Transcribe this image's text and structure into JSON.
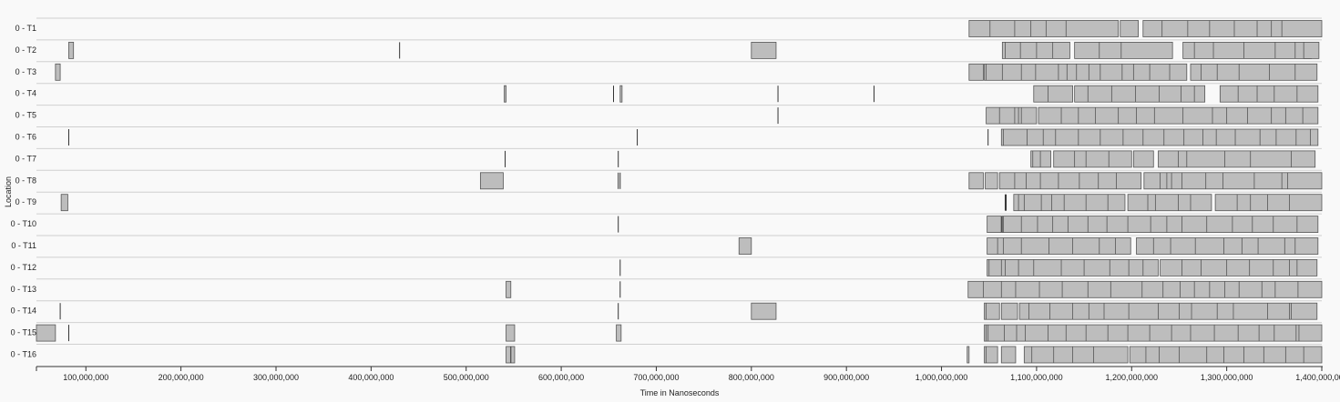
{
  "chart_data": {
    "type": "bar",
    "subtype": "timeline",
    "xlabel": "Time in Nanoseconds",
    "ylabel": "Location",
    "xlim": [
      48000000,
      1400000000
    ],
    "xticks": [
      100000000,
      200000000,
      300000000,
      400000000,
      500000000,
      600000000,
      700000000,
      800000000,
      900000000,
      1000000000,
      1100000000,
      1200000000,
      1300000000,
      1400000000
    ],
    "xtick_labels": [
      "100,000,000",
      "200,000,000",
      "300,000,000",
      "400,000,000",
      "500,000,000",
      "600,000,000",
      "700,000,000",
      "800,000,000",
      "900,000,000",
      "1,000,000,000",
      "1,100,000,000",
      "1,200,000,000",
      "1,300,000,000",
      "1,400,000,000"
    ],
    "grid": false,
    "lanes": [
      {
        "label": "0 - T1",
        "spans": [
          [
            1029000000,
            1186000000
          ],
          [
            1188000000,
            1207000000
          ],
          [
            1212000000,
            1400000000
          ]
        ],
        "dividers": [
          1051000000,
          1077000000,
          1094000000,
          1110000000,
          1131000000,
          1232000000,
          1259000000,
          1282000000,
          1308000000,
          1332000000,
          1347000000,
          1358000000
        ],
        "marks": []
      },
      {
        "label": "0 - T2",
        "spans": [
          [
            82000000,
            87000000
          ],
          [
            800000000,
            826000000
          ],
          [
            1064000000,
            1135000000
          ],
          [
            1140000000,
            1243000000
          ],
          [
            1254000000,
            1389000000
          ],
          [
            1381000000,
            1397000000
          ]
        ],
        "dividers": [
          1067000000,
          1083000000,
          1100000000,
          1117000000,
          1166000000,
          1189000000,
          1266000000,
          1286000000,
          1318000000,
          1351000000,
          1372000000
        ],
        "marks": [
          430000000
        ]
      },
      {
        "label": "0 - T3",
        "spans": [
          [
            68000000,
            73000000
          ],
          [
            1029000000,
            1044000000
          ],
          [
            1045000000,
            1258000000
          ],
          [
            1262000000,
            1395000000
          ]
        ],
        "dividers": [
          1047000000,
          1064000000,
          1084000000,
          1099000000,
          1123000000,
          1132000000,
          1142000000,
          1155000000,
          1167000000,
          1190000000,
          1202000000,
          1219000000,
          1240000000,
          1273000000,
          1290000000,
          1313000000,
          1345000000,
          1372000000
        ],
        "marks": []
      },
      {
        "label": "0 - T4",
        "spans": [
          [
            540000000,
            542000000
          ],
          [
            662000000,
            664000000
          ],
          [
            1097000000,
            1138000000
          ],
          [
            1140000000,
            1277000000
          ],
          [
            1293000000,
            1396000000
          ]
        ],
        "dividers": [
          1112000000,
          1154000000,
          1179000000,
          1204000000,
          1229000000,
          1252000000,
          1266000000,
          1312000000,
          1332000000,
          1350000000,
          1374000000
        ],
        "marks": [
          655000000,
          828000000,
          929000000
        ]
      },
      {
        "label": "0 - T5",
        "spans": [
          [
            1047000000,
            1100000000
          ],
          [
            1102000000,
            1396000000
          ]
        ],
        "dividers": [
          1061000000,
          1077000000,
          1081000000,
          1084000000,
          1126000000,
          1144000000,
          1162000000,
          1186000000,
          1205000000,
          1224000000,
          1254000000,
          1285000000,
          1300000000,
          1322000000,
          1347000000,
          1362000000,
          1380000000
        ],
        "marks": [
          828000000
        ]
      },
      {
        "label": "0 - T6",
        "spans": [
          [
            1063000000,
            1396000000
          ]
        ],
        "dividers": [
          1065000000,
          1090000000,
          1107000000,
          1120000000,
          1144000000,
          1167000000,
          1191000000,
          1212000000,
          1234000000,
          1255000000,
          1275000000,
          1289000000,
          1309000000,
          1335000000,
          1352000000,
          1373000000,
          1388000000
        ],
        "marks": [
          82000000,
          680000000,
          1049000000
        ]
      },
      {
        "label": "0 - T7",
        "spans": [
          [
            1094000000,
            1115000000
          ],
          [
            1118000000,
            1200000000
          ],
          [
            1202000000,
            1223000000
          ],
          [
            1228000000,
            1393000000
          ]
        ],
        "dividers": [
          1096000000,
          1104000000,
          1140000000,
          1152000000,
          1176000000,
          1249000000,
          1258000000,
          1298000000,
          1325000000,
          1368000000
        ],
        "marks": [
          541000000,
          660000000
        ]
      },
      {
        "label": "0 - T8",
        "spans": [
          [
            515000000,
            539000000
          ],
          [
            1029000000,
            1044000000
          ],
          [
            1046000000,
            1059000000
          ],
          [
            1061000000,
            1210000000
          ],
          [
            1213000000,
            1400000000
          ]
        ],
        "dividers": [
          1077000000,
          1089000000,
          1104000000,
          1123000000,
          1145000000,
          1165000000,
          1184000000,
          1230000000,
          1237000000,
          1242000000,
          1253000000,
          1278000000,
          1296000000,
          1329000000,
          1358000000,
          1364000000
        ],
        "marks": [
          660000000,
          662000000
        ]
      },
      {
        "label": "0 - T9",
        "spans": [
          [
            74000000,
            81000000
          ],
          [
            1076000000,
            1193000000
          ],
          [
            1196000000,
            1284000000
          ],
          [
            1288000000,
            1400000000
          ]
        ],
        "dividers": [
          1081000000,
          1087000000,
          1105000000,
          1116000000,
          1129000000,
          1152000000,
          1175000000,
          1217000000,
          1225000000,
          1249000000,
          1262000000,
          1311000000,
          1325000000,
          1343000000,
          1366000000
        ],
        "marks": [
          1067000000,
          1068000000
        ]
      },
      {
        "label": "0 - T10",
        "spans": [
          [
            1048000000,
            1063000000
          ],
          [
            1064000000,
            1396000000
          ]
        ],
        "dividers": [
          1065000000,
          1084000000,
          1101000000,
          1117000000,
          1133000000,
          1154000000,
          1174000000,
          1196000000,
          1220000000,
          1237000000,
          1253000000,
          1279000000,
          1306000000,
          1327000000,
          1349000000,
          1374000000
        ],
        "marks": [
          1063000000,
          660000000
        ]
      },
      {
        "label": "0 - T11",
        "spans": [
          [
            787000000,
            800000000
          ],
          [
            1048000000,
            1199000000
          ],
          [
            1205000000,
            1396000000
          ]
        ],
        "dividers": [
          1059000000,
          1065000000,
          1084000000,
          1113000000,
          1138000000,
          1166000000,
          1183000000,
          1223000000,
          1241000000,
          1267000000,
          1297000000,
          1316000000,
          1333000000,
          1361000000,
          1372000000
        ],
        "marks": []
      },
      {
        "label": "0 - T12",
        "spans": [
          [
            1048000000,
            1228000000
          ],
          [
            1230000000,
            1395000000
          ]
        ],
        "dividers": [
          1050000000,
          1063000000,
          1067000000,
          1081000000,
          1097000000,
          1126000000,
          1150000000,
          1177000000,
          1197000000,
          1212000000,
          1253000000,
          1273000000,
          1300000000,
          1324000000,
          1349000000,
          1366000000,
          1374000000
        ],
        "marks": [
          662000000
        ]
      },
      {
        "label": "0 - T13",
        "spans": [
          [
            542000000,
            547000000
          ],
          [
            1028000000,
            1400000000
          ]
        ],
        "dividers": [
          1044000000,
          1063000000,
          1078000000,
          1103000000,
          1127000000,
          1154000000,
          1178000000,
          1211000000,
          1233000000,
          1251000000,
          1266000000,
          1282000000,
          1298000000,
          1313000000,
          1337000000,
          1351000000,
          1375000000
        ],
        "marks": [
          662000000
        ]
      },
      {
        "label": "0 - T14",
        "spans": [
          [
            800000000,
            826000000
          ],
          [
            1045000000,
            1061000000
          ],
          [
            1063000000,
            1080000000
          ],
          [
            1082000000,
            1395000000
          ]
        ],
        "dividers": [
          1047000000,
          1092000000,
          1114000000,
          1138000000,
          1155000000,
          1171000000,
          1197000000,
          1228000000,
          1250000000,
          1263000000,
          1290000000,
          1307000000,
          1343000000,
          1366000000,
          1368000000
        ],
        "marks": [
          73000000,
          660000000
        ]
      },
      {
        "label": "0 - T15",
        "spans": [
          [
            48000000,
            68000000
          ],
          [
            542000000,
            551000000
          ],
          [
            658000000,
            663000000
          ],
          [
            1045000000,
            1400000000
          ]
        ],
        "dividers": [
          1047000000,
          1049000000,
          1066000000,
          1079000000,
          1088000000,
          1112000000,
          1131000000,
          1152000000,
          1175000000,
          1196000000,
          1219000000,
          1242000000,
          1262000000,
          1287000000,
          1312000000,
          1334000000,
          1350000000,
          1373000000,
          1376000000
        ],
        "marks": [
          82000000
        ]
      },
      {
        "label": "0 - T16",
        "spans": [
          [
            542000000,
            551000000
          ],
          [
            1027000000,
            1029000000
          ],
          [
            1045000000,
            1059000000
          ],
          [
            1063000000,
            1078000000
          ],
          [
            1087000000,
            1196000000
          ],
          [
            1198000000,
            1400000000
          ]
        ],
        "dividers": [
          1047000000,
          1095000000,
          1118000000,
          1138000000,
          1160000000,
          1215000000,
          1229000000,
          1250000000,
          1279000000,
          1297000000,
          1318000000,
          1339000000,
          1362000000,
          1381000000
        ],
        "marks": [
          547000000
        ]
      }
    ]
  }
}
